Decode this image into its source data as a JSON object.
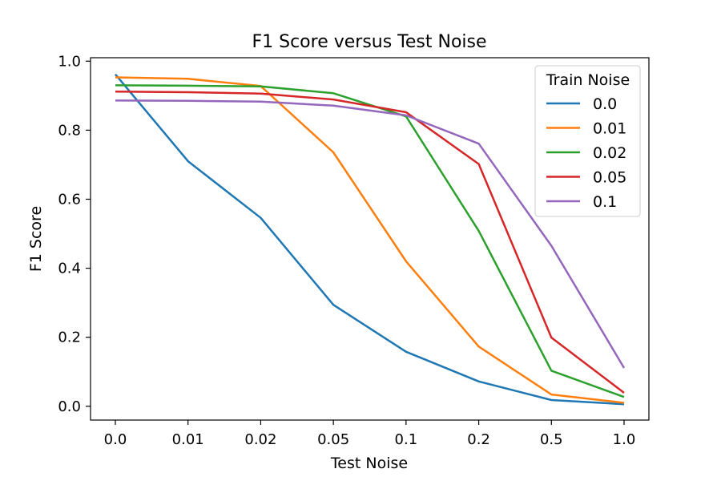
{
  "chart_data": {
    "type": "line",
    "title": "F1 Score versus Test Noise",
    "xlabel": "Test Noise",
    "ylabel": "F1 Score",
    "categories": [
      "0.0",
      "0.01",
      "0.02",
      "0.05",
      "0.1",
      "0.2",
      "0.5",
      "1.0"
    ],
    "yticks": [
      "0.0",
      "0.2",
      "0.4",
      "0.6",
      "0.8",
      "1.0"
    ],
    "ylim": [
      -0.04,
      1.01
    ],
    "grid": false,
    "legend": {
      "title": "Train Noise",
      "placement": "top-right"
    },
    "series": [
      {
        "name": "0.0",
        "color": "#1f77b4",
        "values": [
          0.962,
          0.71,
          0.546,
          0.294,
          0.158,
          0.072,
          0.018,
          0.006
        ]
      },
      {
        "name": "0.01",
        "color": "#ff7f0e",
        "values": [
          0.953,
          0.949,
          0.928,
          0.736,
          0.42,
          0.173,
          0.034,
          0.01
        ]
      },
      {
        "name": "0.02",
        "color": "#2ca02c",
        "values": [
          0.93,
          0.929,
          0.927,
          0.907,
          0.84,
          0.508,
          0.103,
          0.027
        ]
      },
      {
        "name": "0.05",
        "color": "#d62728",
        "values": [
          0.912,
          0.91,
          0.906,
          0.889,
          0.852,
          0.702,
          0.199,
          0.039
        ]
      },
      {
        "name": "0.1",
        "color": "#9467bd",
        "values": [
          0.886,
          0.885,
          0.883,
          0.871,
          0.843,
          0.761,
          0.465,
          0.111
        ]
      }
    ]
  }
}
